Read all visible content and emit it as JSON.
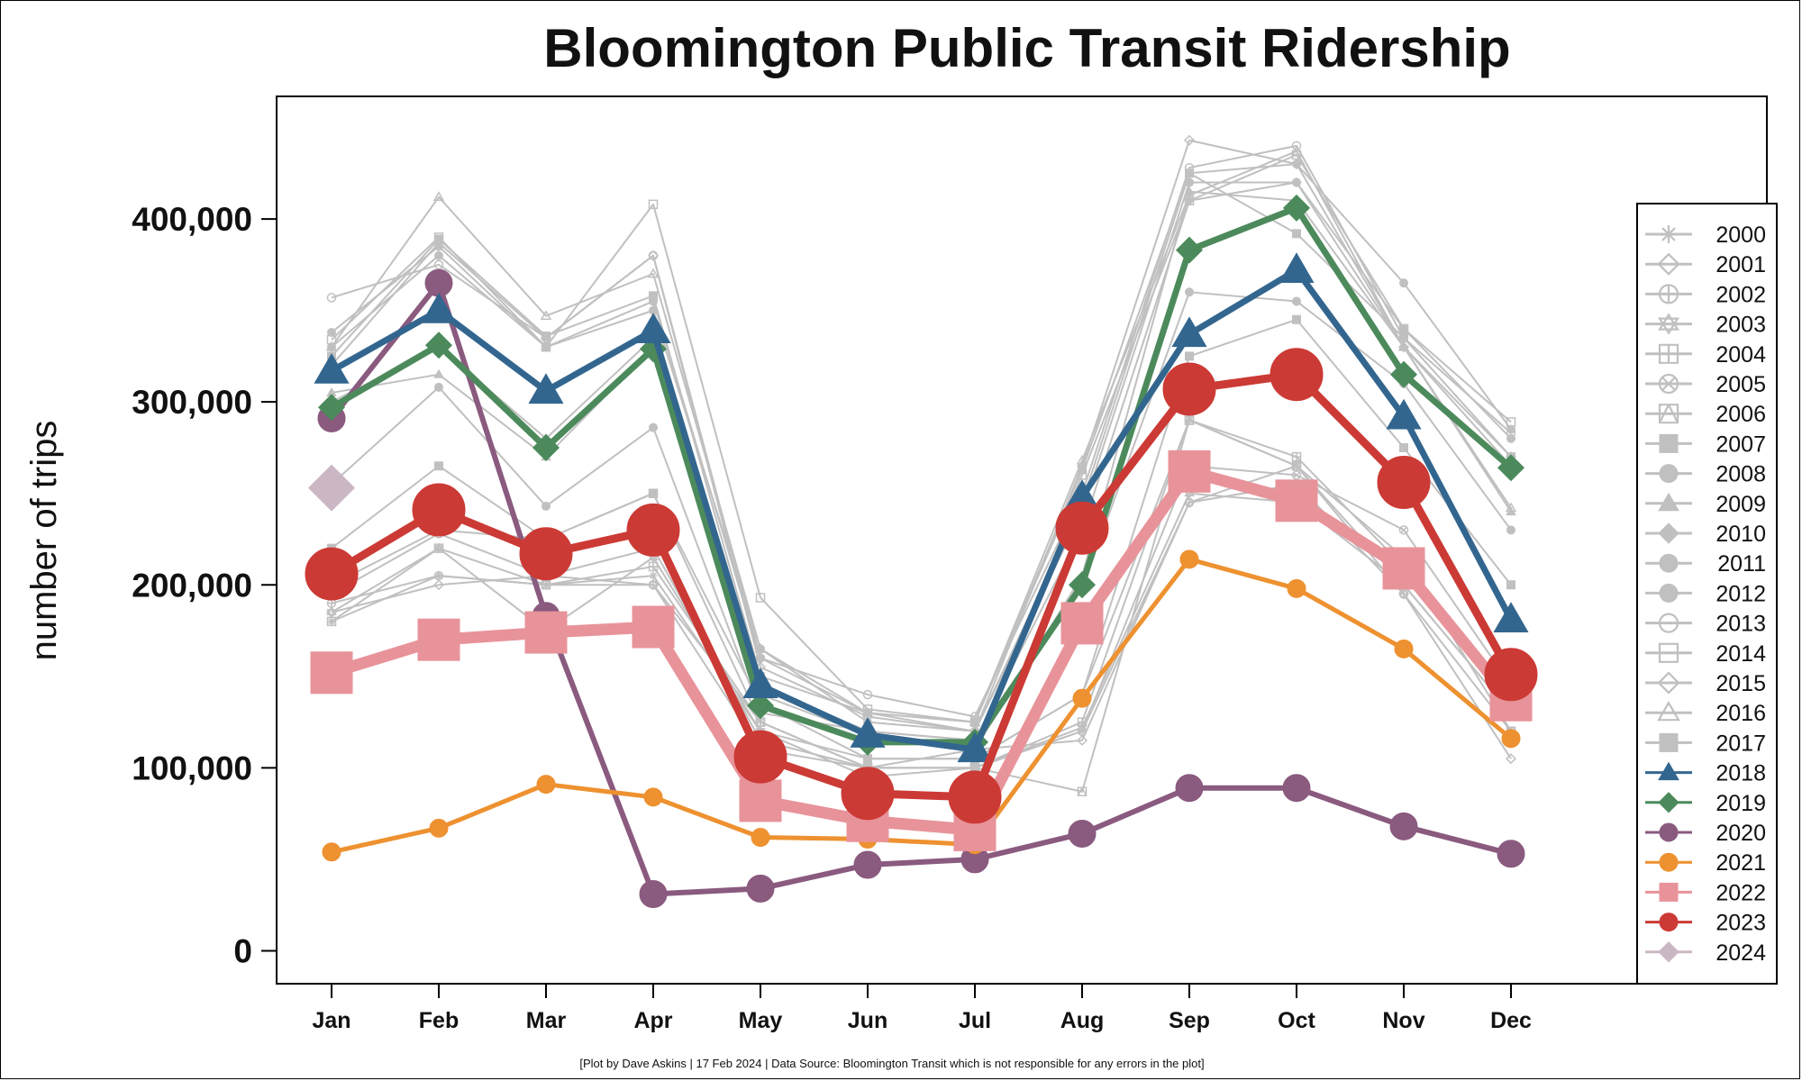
{
  "chart_data": {
    "type": "line",
    "title": "Bloomington Public Transit Ridership",
    "ylabel": "number of trips",
    "xlabel": "",
    "footnote": "[Plot by Dave Askins | 17 Feb 2024 | Data Source: Bloomington Transit which is not responsible for any errors in the plot]",
    "categories": [
      "Jan",
      "Feb",
      "Mar",
      "Apr",
      "May",
      "Jun",
      "Jul",
      "Aug",
      "Sep",
      "Oct",
      "Nov",
      "Dec"
    ],
    "ylim": [
      -18000,
      467000
    ],
    "yticks": [
      0,
      100000,
      200000,
      300000,
      400000
    ],
    "ytick_labels": [
      "0",
      "100,000",
      "200,000",
      "300,000",
      "400,000"
    ],
    "legend_position": "right",
    "series": [
      {
        "name": "2000",
        "color": "#c0c0c0",
        "marker": "asterisk",
        "values": [
          180000,
          205000,
          200000,
          205000,
          120000,
          105000,
          105000,
          140000,
          290000,
          265000,
          200000,
          130000
        ]
      },
      {
        "name": "2001",
        "color": "#c0c0c0",
        "marker": "diamond-open",
        "values": [
          185000,
          200000,
          205000,
          200000,
          110000,
          100000,
          110000,
          115000,
          245000,
          255000,
          195000,
          105000
        ]
      },
      {
        "name": "2002",
        "color": "#c0c0c0",
        "marker": "circle-plus",
        "values": [
          190000,
          205000,
          200000,
          200000,
          125000,
          100000,
          100000,
          120000,
          245000,
          265000,
          195000,
          120000
        ]
      },
      {
        "name": "2003",
        "color": "#c0c0c0",
        "marker": "star",
        "values": [
          185000,
          220000,
          175000,
          215000,
          120000,
          95000,
          100000,
          122000,
          250000,
          245000,
          200000,
          130000
        ]
      },
      {
        "name": "2004",
        "color": "#c0c0c0",
        "marker": "square-plus",
        "values": [
          180000,
          220000,
          200000,
          210000,
          125000,
          100000,
          100000,
          125000,
          290000,
          270000,
          210000,
          140000
        ]
      },
      {
        "name": "2005",
        "color": "#c0c0c0",
        "marker": "circle-x",
        "values": [
          195000,
          228000,
          205000,
          220000,
          115000,
          100000,
          100000,
          120000,
          265000,
          260000,
          230000,
          145000
        ]
      },
      {
        "name": "2006",
        "color": "#c0c0c0",
        "marker": "square-triangle",
        "values": [
          200000,
          230000,
          225000,
          250000,
          125000,
          100000,
          100000,
          87000,
          290000,
          265000,
          215000,
          120000
        ]
      },
      {
        "name": "2007",
        "color": "#c0c0c0",
        "marker": "square",
        "values": [
          220000,
          265000,
          225000,
          250000,
          135000,
          105000,
          105000,
          140000,
          325000,
          345000,
          275000,
          200000
        ]
      },
      {
        "name": "2008",
        "color": "#c0c0c0",
        "marker": "circle",
        "values": [
          255000,
          308000,
          243000,
          286000,
          130000,
          120000,
          115000,
          198000,
          360000,
          355000,
          310000,
          230000
        ]
      },
      {
        "name": "2009",
        "color": "#c0c0c0",
        "marker": "triangle",
        "values": [
          305000,
          315000,
          270000,
          330000,
          140000,
          118000,
          110000,
          205000,
          415000,
          410000,
          330000,
          240000
        ]
      },
      {
        "name": "2010",
        "color": "#c0c0c0",
        "marker": "diamond",
        "values": [
          300000,
          330000,
          280000,
          335000,
          145000,
          120000,
          115000,
          230000,
          410000,
          420000,
          330000,
          265000
        ]
      },
      {
        "name": "2011",
        "color": "#c0c0c0",
        "marker": "circle",
        "values": [
          338000,
          385000,
          330000,
          350000,
          165000,
          125000,
          120000,
          240000,
          420000,
          420000,
          340000,
          280000
        ]
      },
      {
        "name": "2012",
        "color": "#c0c0c0",
        "marker": "circle",
        "values": [
          330000,
          380000,
          330000,
          355000,
          160000,
          130000,
          120000,
          245000,
          425000,
          430000,
          365000,
          285000
        ]
      },
      {
        "name": "2013",
        "color": "#c0c0c0",
        "marker": "circle-open",
        "values": [
          357000,
          375000,
          335000,
          380000,
          160000,
          140000,
          128000,
          250000,
          428000,
          440000,
          335000,
          283000
        ]
      },
      {
        "name": "2014",
        "color": "#c0c0c0",
        "marker": "square-open",
        "values": [
          334000,
          390000,
          330000,
          408000,
          193000,
          132000,
          125000,
          260000,
          410000,
          435000,
          340000,
          289000
        ]
      },
      {
        "name": "2015",
        "color": "#c0c0c0",
        "marker": "diamond-open",
        "values": [
          320000,
          387000,
          335000,
          380000,
          155000,
          128000,
          120000,
          265000,
          443000,
          430000,
          330000,
          270000
        ]
      },
      {
        "name": "2016",
        "color": "#c0c0c0",
        "marker": "triangle-open",
        "values": [
          330000,
          412000,
          347000,
          370000,
          165000,
          130000,
          125000,
          268000,
          413000,
          437000,
          330000,
          242000
        ]
      },
      {
        "name": "2017",
        "color": "#c0c0c0",
        "marker": "square",
        "values": [
          325000,
          389000,
          336000,
          358000,
          150000,
          130000,
          125000,
          263000,
          425000,
          392000,
          335000,
          270000
        ]
      },
      {
        "name": "2018",
        "color": "#33668f",
        "marker": "triangle",
        "values": [
          317000,
          350000,
          306000,
          339000,
          145000,
          118000,
          110000,
          248000,
          337000,
          372000,
          292000,
          181000
        ]
      },
      {
        "name": "2019",
        "color": "#4c8a5c",
        "marker": "diamond",
        "values": [
          297000,
          331000,
          275000,
          329000,
          134000,
          114000,
          114000,
          200000,
          383000,
          406000,
          315000,
          264000
        ]
      },
      {
        "name": "2020",
        "color": "#8a5a7f",
        "marker": "circle",
        "values": [
          291000,
          365000,
          183000,
          31000,
          34000,
          47000,
          50000,
          64000,
          89000,
          89000,
          68000,
          53000
        ]
      },
      {
        "name": "2021",
        "color": "#ee9130",
        "marker": "circle",
        "values": [
          54000,
          67000,
          91000,
          84000,
          62000,
          61000,
          58000,
          138000,
          214000,
          198000,
          165000,
          116000
        ]
      },
      {
        "name": "2022",
        "color": "#e8939a",
        "marker": "square",
        "values": [
          152000,
          170000,
          174000,
          177000,
          82000,
          71000,
          66000,
          179000,
          262000,
          246000,
          209000,
          137000
        ]
      },
      {
        "name": "2023",
        "color": "#cc3a35",
        "marker": "circle",
        "values": [
          206000,
          241000,
          217000,
          230000,
          106000,
          86000,
          84000,
          231000,
          307000,
          315000,
          256000,
          151000
        ]
      },
      {
        "name": "2024",
        "color": "#cbb7c4",
        "marker": "diamond",
        "values": [
          253000,
          null,
          null,
          null,
          null,
          null,
          null,
          null,
          null,
          null,
          null,
          null
        ]
      }
    ]
  }
}
